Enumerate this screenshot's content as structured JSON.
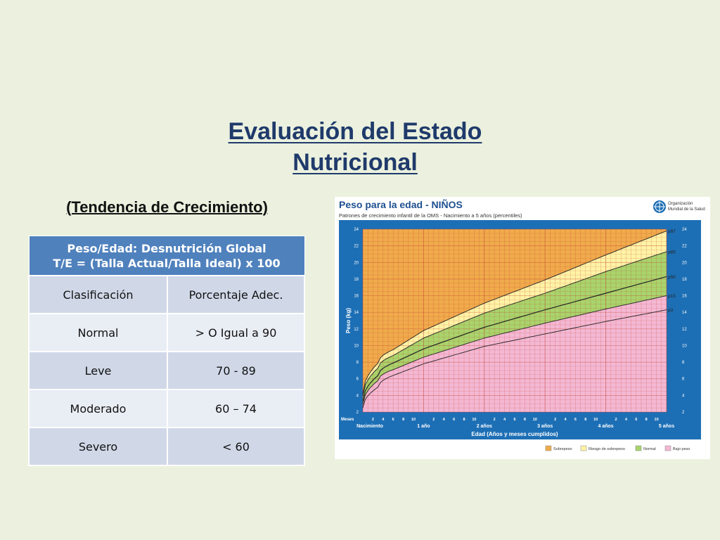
{
  "slide": {
    "title_line1": "Evaluación del Estado",
    "title_line2": "Nutricional",
    "subtitle": "(Tendencia de Crecimiento)"
  },
  "table": {
    "header_line1": "Peso/Edad: Desnutrición Global",
    "header_line2": "T/E = (Talla Actual/Talla Ideal) x 100",
    "columns": [
      "Clasificación",
      "Porcentaje Adec."
    ],
    "rows": [
      [
        "Normal",
        "> O Igual a 90"
      ],
      [
        "Leve",
        "70 - 89"
      ],
      [
        "Moderado",
        "60 – 74"
      ],
      [
        "Severo",
        "< 60"
      ]
    ]
  },
  "chart": {
    "title": "Peso para la edad - NIÑOS",
    "subtitle": "Patrones de crecimiento infantil de la OMS - Nacimiento a 5 años (percentiles)",
    "org_line1": "Organización",
    "org_line2": "Mundial de la Salud",
    "ylabel": "Peso (kg)",
    "xlabel": "Edad (Años y meses cumplidos)",
    "months_label": "Meses",
    "year_labels": [
      "Nacimiento",
      "1 año",
      "2 años",
      "3 años",
      "4 años",
      "5 años"
    ],
    "month_ticks": [
      "2",
      "4",
      "6",
      "8",
      "10"
    ],
    "legend": [
      "Sobrepeso",
      "Riesgo de sobrepeso",
      "Normal",
      "Bajo peso"
    ],
    "colors": {
      "frame": "#1d6fb5",
      "sobrepeso": "#f0ab4c",
      "riesgo": "#fff3a6",
      "normal": "#a9d46c",
      "bajo": "#f4b8d3",
      "title": "#1d4f91"
    }
  },
  "chart_data": {
    "type": "line",
    "title": "Peso para la edad - NIÑOS",
    "xlabel": "Edad (Años y meses cumplidos)",
    "ylabel": "Peso (kg)",
    "x_unit": "months",
    "xlim": [
      0,
      60
    ],
    "ylim": [
      2,
      24
    ],
    "y_ticks": [
      2,
      4,
      6,
      8,
      10,
      12,
      14,
      16,
      18,
      20,
      22,
      24
    ],
    "x": [
      0,
      3,
      6,
      12,
      24,
      36,
      48,
      60
    ],
    "series": [
      {
        "name": "p97",
        "values": [
          4.2,
          7.9,
          9.5,
          11.8,
          15.1,
          17.9,
          20.9,
          23.8
        ]
      },
      {
        "name": "p85",
        "values": [
          3.9,
          7.3,
          8.8,
          10.9,
          13.9,
          16.3,
          18.9,
          21.3
        ]
      },
      {
        "name": "p50",
        "values": [
          3.3,
          6.4,
          7.9,
          9.6,
          12.2,
          14.3,
          16.3,
          18.3
        ]
      },
      {
        "name": "p15",
        "values": [
          2.9,
          5.8,
          7.1,
          8.6,
          10.9,
          12.7,
          14.4,
          16.0
        ]
      },
      {
        "name": "p3",
        "values": [
          2.5,
          5.0,
          6.4,
          7.8,
          9.9,
          11.4,
          12.9,
          14.3
        ]
      }
    ],
    "grid": true,
    "legend_position": "bottom"
  }
}
